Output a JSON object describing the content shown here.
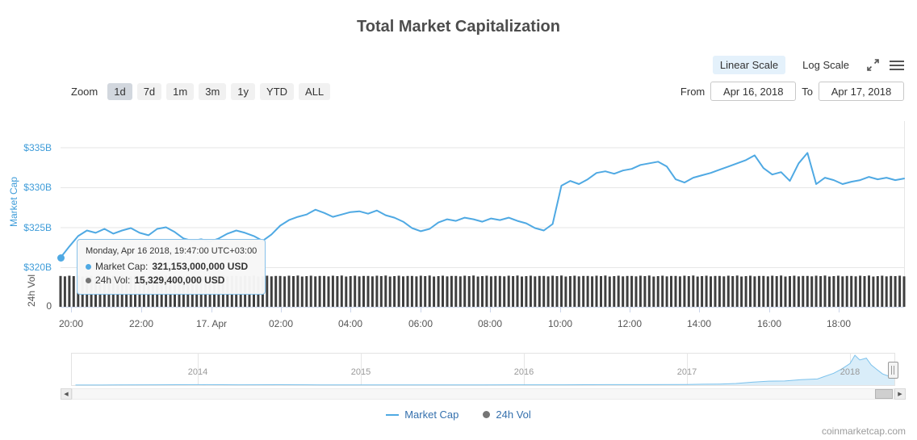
{
  "page": {
    "title": "Total Market Capitalization",
    "watermark": "coinmarketcap.com"
  },
  "colors": {
    "accent": "#4FA9E3",
    "accent_text": "#3E9CD9",
    "volume_bar": "#3F3F3F",
    "nav_fill": "#D9EDF9",
    "nav_line": "#7CC2EC",
    "grid": "#E6E6E6",
    "axis_line": "#CCD6EB",
    "linear_scale_bg": "#E4F1FB",
    "selected_zoom_bg": "#D2D7DE",
    "legend_text": "#3470AD"
  },
  "scale_toggle": {
    "linear": "Linear Scale",
    "log": "Log Scale",
    "selected": "Linear Scale"
  },
  "zoom": {
    "label": "Zoom",
    "buttons": [
      "1d",
      "7d",
      "1m",
      "3m",
      "1y",
      "YTD",
      "ALL"
    ],
    "selected": "1d"
  },
  "range": {
    "from_label": "From",
    "from_value": "Apr 16, 2018",
    "to_label": "To",
    "to_value": "Apr 17, 2018"
  },
  "axes": {
    "market_cap_title": "Market Cap",
    "vol_title": "24h Vol",
    "vol_zero_label": "0",
    "y_ticks": [
      {
        "label": "$335B",
        "value": 335
      },
      {
        "label": "$330B",
        "value": 330
      },
      {
        "label": "$325B",
        "value": 325
      },
      {
        "label": "$320B",
        "value": 320
      }
    ],
    "x_ticks": [
      {
        "label": "20:00",
        "x": 88
      },
      {
        "label": "22:00",
        "x": 175
      },
      {
        "label": "17. Apr",
        "x": 262
      },
      {
        "label": "02:00",
        "x": 348
      },
      {
        "label": "04:00",
        "x": 434
      },
      {
        "label": "06:00",
        "x": 521
      },
      {
        "label": "08:00",
        "x": 607
      },
      {
        "label": "10:00",
        "x": 694
      },
      {
        "label": "12:00",
        "x": 780
      },
      {
        "label": "14:00",
        "x": 866
      },
      {
        "label": "16:00",
        "x": 953
      },
      {
        "label": "18:00",
        "x": 1039
      }
    ]
  },
  "navigator": {
    "year_ticks": [
      {
        "label": "2014",
        "x": 245
      },
      {
        "label": "2015",
        "x": 447
      },
      {
        "label": "2016",
        "x": 649
      },
      {
        "label": "2017",
        "x": 851
      },
      {
        "label": "2018",
        "x": 1053
      }
    ]
  },
  "scrollbar": {
    "left_arrow": "◀",
    "right_arrow": "▶"
  },
  "tooltip": {
    "header": "Monday, Apr 16 2018, 19:47:00 UTC+03:00",
    "rows": [
      {
        "label": "Market Cap:",
        "value": "321,153,000,000 USD",
        "color": "#4FA9E3"
      },
      {
        "label": "24h Vol:",
        "value": "15,329,400,000 USD",
        "color": "#757575"
      }
    ]
  },
  "legend": [
    {
      "label": "Market Cap",
      "marker": "line",
      "color": "#4FA9E3"
    },
    {
      "label": "24h Vol",
      "marker": "dot",
      "color": "#757575"
    }
  ],
  "chart_data": [
    {
      "type": "line",
      "name": "Market Cap",
      "title": "Total Market Capitalization",
      "x_description": "Apr 16 2018 19:47 UTC+03:00 to Apr 17 2018 ~19:45, ~15-minute intervals",
      "y_unit": "USD (billions)",
      "ylim": [
        317.5,
        337.5
      ],
      "y_tick_labels": [
        "$320B",
        "$325B",
        "$330B",
        "$335B"
      ],
      "x_tick_labels": [
        "20:00",
        "22:00",
        "17. Apr",
        "02:00",
        "04:00",
        "06:00",
        "08:00",
        "10:00",
        "12:00",
        "14:00",
        "16:00",
        "18:00"
      ],
      "values": [
        321.2,
        322.6,
        323.9,
        324.6,
        324.3,
        324.8,
        324.2,
        324.6,
        324.9,
        324.3,
        324.0,
        324.8,
        325.0,
        324.4,
        323.6,
        323.3,
        323.5,
        323.2,
        323.6,
        324.2,
        324.6,
        324.3,
        323.9,
        323.3,
        324.1,
        325.2,
        325.9,
        326.3,
        326.6,
        327.2,
        326.8,
        326.3,
        326.6,
        326.9,
        327.0,
        326.7,
        327.1,
        326.5,
        326.2,
        325.7,
        324.9,
        324.5,
        324.8,
        325.6,
        326.0,
        325.8,
        326.2,
        326.0,
        325.7,
        326.1,
        325.9,
        326.2,
        325.8,
        325.5,
        324.9,
        324.6,
        325.4,
        330.2,
        330.8,
        330.4,
        331.0,
        331.8,
        332.0,
        331.7,
        332.1,
        332.3,
        332.8,
        333.0,
        333.2,
        332.6,
        331.0,
        330.6,
        331.2,
        331.5,
        331.8,
        332.2,
        332.6,
        333.0,
        333.4,
        334.0,
        332.4,
        331.6,
        331.9,
        330.8,
        333.0,
        334.3,
        330.4,
        331.2,
        330.9,
        330.4,
        330.7,
        330.9,
        331.3,
        331.0,
        331.2,
        330.9,
        331.1
      ]
    },
    {
      "type": "bar",
      "name": "24h Vol",
      "y_unit": "USD (billions)",
      "note": "Rolling 24h volume, nearly constant around $15.3B; rendered as dense bars on a secondary axis with 0 baseline",
      "values": [
        15.3,
        15.1,
        15.4,
        15.2,
        15.5,
        15.0,
        15.2,
        15.4,
        15.1,
        15.3,
        15.3,
        15.1,
        15.4,
        15.2,
        15.5,
        15.0,
        15.2,
        15.4,
        15.1,
        15.3,
        15.3,
        15.1,
        15.4,
        15.2,
        15.5,
        15.0,
        15.2,
        15.4,
        15.1,
        15.3,
        15.3,
        15.1,
        15.4,
        15.2,
        15.5,
        15.0,
        15.2,
        15.4,
        15.1,
        15.3,
        15.3,
        15.1,
        15.4,
        15.2,
        15.5,
        15.0,
        15.2,
        15.4,
        15.1,
        15.3,
        15.3,
        15.1,
        15.4,
        15.2,
        15.5,
        15.0,
        15.2,
        15.4,
        15.1,
        15.3,
        15.3,
        15.1,
        15.4,
        15.2,
        15.5,
        15.0,
        15.2,
        15.4,
        15.1,
        15.3,
        15.3,
        15.1,
        15.4,
        15.2,
        15.5,
        15.0,
        15.2,
        15.4,
        15.1,
        15.3,
        15.3,
        15.1,
        15.4,
        15.2,
        15.5,
        15.0,
        15.2,
        15.4,
        15.1,
        15.3,
        15.3,
        15.1,
        15.4,
        15.2,
        15.5,
        15.0,
        15.2,
        15.4,
        15.1,
        15.3,
        15.3,
        15.1,
        15.4,
        15.2,
        15.5,
        15.0,
        15.2,
        15.4,
        15.1,
        15.3,
        15.3,
        15.1,
        15.4,
        15.2,
        15.5,
        15.0,
        15.2,
        15.4,
        15.1,
        15.3,
        15.3,
        15.1,
        15.4,
        15.2,
        15.5,
        15.0,
        15.2,
        15.4,
        15.1,
        15.3,
        15.3,
        15.1,
        15.4,
        15.2,
        15.5,
        15.0,
        15.2,
        15.4,
        15.1,
        15.3,
        15.3,
        15.1,
        15.4,
        15.2,
        15.5,
        15.0,
        15.2,
        15.4,
        15.1,
        15.3,
        15.3,
        15.1,
        15.4,
        15.2,
        15.5,
        15.0,
        15.2,
        15.4,
        15.1,
        15.3,
        15.3,
        15.1,
        15.4,
        15.2,
        15.5,
        15.0,
        15.2,
        15.4,
        15.1,
        15.3,
        15.3,
        15.1,
        15.4,
        15.2,
        15.5,
        15.0,
        15.2,
        15.4,
        15.1,
        15.3,
        15.3,
        15.1,
        15.4,
        15.2,
        15.5,
        15.0,
        15.2,
        15.4,
        15.1,
        15.3,
        15.2,
        15.4,
        15.1
      ]
    },
    {
      "type": "area",
      "name": "Market Cap (all-time navigator)",
      "x_unit": "year",
      "y_unit": "USD (billions)",
      "x_tick_labels": [
        "2014",
        "2015",
        "2016",
        "2017",
        "2018"
      ],
      "x": [
        2013.25,
        2013.5,
        2013.75,
        2014.0,
        2014.25,
        2014.5,
        2014.75,
        2015.0,
        2015.25,
        2015.5,
        2015.75,
        2016.0,
        2016.25,
        2016.5,
        2016.75,
        2017.0,
        2017.1,
        2017.2,
        2017.3,
        2017.4,
        2017.5,
        2017.6,
        2017.7,
        2017.8,
        2017.9,
        2017.95,
        2018.0,
        2018.03,
        2018.06,
        2018.1,
        2018.13,
        2018.16,
        2018.2,
        2018.23,
        2018.26,
        2018.29
      ],
      "values": [
        1.5,
        4,
        10,
        14,
        9,
        11,
        7,
        5.5,
        4.5,
        4.7,
        6.5,
        8,
        10,
        13,
        14,
        17,
        25,
        30,
        45,
        80,
        110,
        115,
        150,
        170,
        330,
        450,
        600,
        830,
        700,
        750,
        560,
        450,
        310,
        260,
        280,
        330
      ]
    }
  ]
}
